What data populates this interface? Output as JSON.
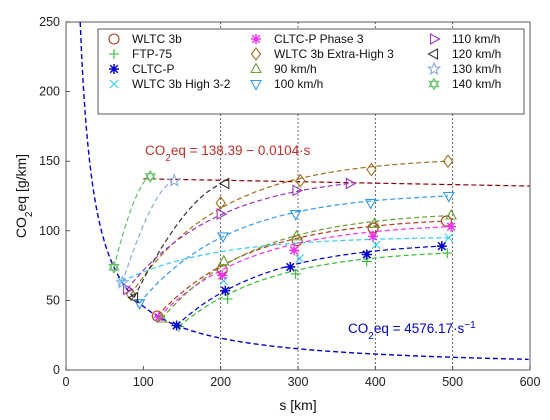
{
  "chart_data": {
    "type": "scatter",
    "xlabel": "s [km]",
    "ylabel": "CO2eq [g/km]",
    "xlim": [
      0,
      600
    ],
    "ylim": [
      0,
      250
    ],
    "x_ticks": [
      0,
      100,
      200,
      300,
      400,
      500,
      600
    ],
    "y_ticks": [
      0,
      50,
      100,
      150,
      200,
      250
    ],
    "grid": "vertical dotted lines at 200, 300, 400, 500",
    "legend_position": "top",
    "annotations": {
      "linear_fit": "CO2eq = 138.39 - 0.0104·s",
      "hyperbolic_fit": "CO2eq = 4576.17·s^-1"
    },
    "fits": {
      "linear": {
        "intercept": 138.39,
        "slope": -0.0104,
        "color": "#8B0000"
      },
      "hyperbolic": {
        "coefficient": 4576.17,
        "color": "#0000CC"
      }
    },
    "series": [
      {
        "name": "WLTC 3b",
        "marker": "circle",
        "color": "#B03A1A",
        "x": [
          118,
          202,
          299,
          397,
          492
        ],
        "y": [
          38.8,
          72,
          93,
          102,
          107
        ]
      },
      {
        "name": "FTP-75",
        "marker": "plus",
        "color": "#33BB33",
        "x": [
          146,
          209,
          297,
          389,
          493
        ],
        "y": [
          31.2,
          51,
          69,
          78,
          84
        ]
      },
      {
        "name": "CLTC-P",
        "marker": "asterisk",
        "color": "#0000CC",
        "x": [
          143,
          206,
          290,
          389,
          486
        ],
        "y": [
          32,
          57,
          74,
          83,
          89
        ]
      },
      {
        "name": "WLTC 3b High 3-2",
        "marker": "x",
        "color": "#33CCEE",
        "x": [
          72,
          204,
          302,
          401,
          495
        ],
        "y": [
          63.5,
          64,
          80,
          90,
          95
        ]
      },
      {
        "name": "CLTC-P Phase 3",
        "marker": "asterisk",
        "color": "#EE33EE",
        "x": [
          120,
          202,
          295,
          397,
          498
        ],
        "y": [
          38,
          68,
          86,
          96,
          103
        ]
      },
      {
        "name": "WLTC 3b Extra-High 3",
        "marker": "diamond",
        "color": "#A0701A",
        "x": [
          84,
          200,
          303,
          395,
          494
        ],
        "y": [
          54.4,
          120,
          136,
          144,
          150
        ]
      },
      {
        "name": "90 km/h",
        "marker": "triangle-up",
        "color": "#6AA030",
        "x": [
          124,
          204,
          298,
          399,
          498
        ],
        "y": [
          36.9,
          78,
          96,
          105,
          111
        ]
      },
      {
        "name": "100 km/h",
        "marker": "triangle-down",
        "color": "#3399EE",
        "x": [
          95,
          203,
          297,
          394,
          495
        ],
        "y": [
          48,
          96,
          112,
          120,
          125
        ]
      },
      {
        "name": "110 km/h",
        "marker": "triangle-right",
        "color": "#9933BB",
        "x": [
          79,
          200,
          298,
          367
        ],
        "y": [
          57.9,
          112,
          129,
          134
        ]
      },
      {
        "name": "120 km/h",
        "marker": "triangle-left",
        "color": "#333333",
        "x": [
          88,
          206
        ],
        "y": [
          52,
          134
        ]
      },
      {
        "name": "130 km/h",
        "marker": "star",
        "color": "#88AADD",
        "x": [
          73,
          140
        ],
        "y": [
          62.7,
          136
        ]
      },
      {
        "name": "140 km/h",
        "marker": "hexagram",
        "color": "#66BB66",
        "x": [
          62,
          109
        ],
        "y": [
          73.8,
          139
        ]
      }
    ]
  }
}
